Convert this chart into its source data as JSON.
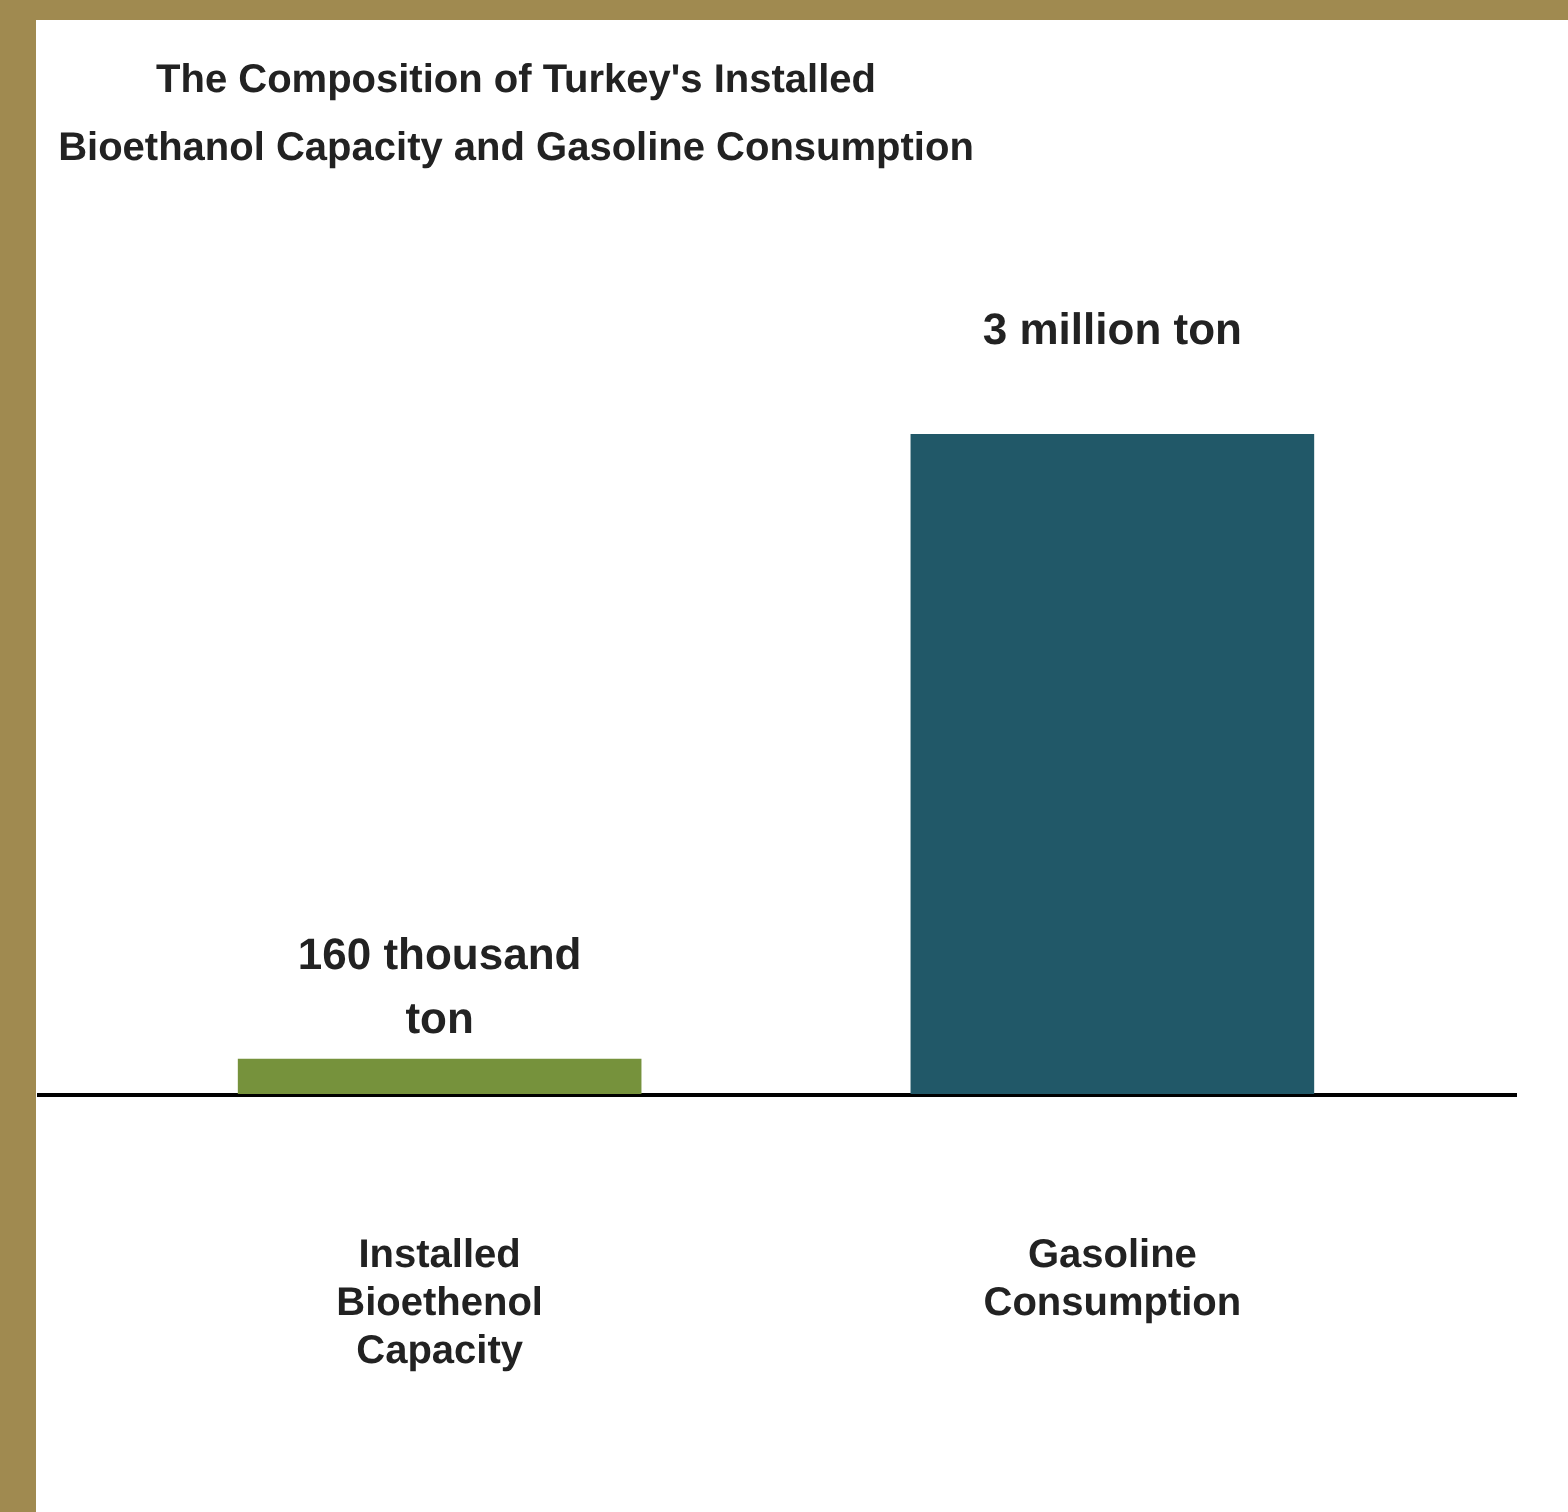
{
  "chart_data": {
    "type": "bar",
    "title": "The Composition of Turkey's Installed Bioethanol Capacity and Gasoline Consumption",
    "categories": [
      "Installed Bioethenol Capacity",
      "Gasoline Consumption"
    ],
    "values": [
      160000,
      3000000
    ],
    "colors": [
      "#76923c",
      "#215868"
    ],
    "value_labels": [
      "160 thousand ton",
      "3 million ton"
    ],
    "tick_labels": "x"
  }
}
